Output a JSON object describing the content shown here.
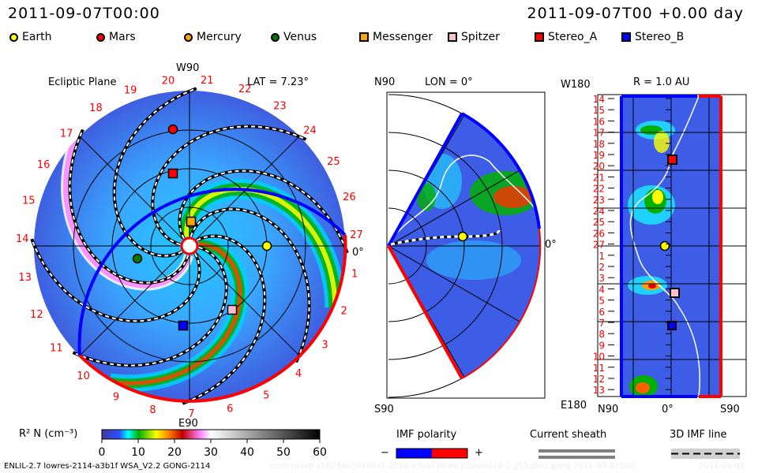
{
  "header": {
    "left_time": "2011-09-07T00:00",
    "right_time": "2011-09-07T00 +0.00 day"
  },
  "legend": [
    {
      "label": "Earth",
      "shape": "circle",
      "color": "#ffff00"
    },
    {
      "label": "Mars",
      "shape": "circle",
      "color": "#ff0000"
    },
    {
      "label": "Mercury",
      "shape": "circle",
      "color": "#ffa500"
    },
    {
      "label": "Venus",
      "shape": "circle",
      "color": "#007a00"
    },
    {
      "label": "Messenger",
      "shape": "square",
      "color": "#ffa500"
    },
    {
      "label": "Spitzer",
      "shape": "square",
      "color": "#ffc0cb"
    },
    {
      "label": "Stereo_A",
      "shape": "square",
      "color": "#ff0000"
    },
    {
      "label": "Stereo_B",
      "shape": "square",
      "color": "#0000ff"
    }
  ],
  "chart_data": [
    {
      "type": "heatmap",
      "title": "Ecliptic Plane",
      "subtitle": "LAT = 7.23°",
      "top_label": "W90",
      "bottom_label": "E90",
      "right_label": "0°",
      "carrington_labels": [
        "1",
        "2",
        "3",
        "4",
        "5",
        "6",
        "7",
        "8",
        "9",
        "10",
        "11",
        "12",
        "13",
        "14",
        "15",
        "16",
        "17",
        "18",
        "19",
        "20",
        "21",
        "22",
        "23",
        "24",
        "25",
        "26",
        "27"
      ]
    },
    {
      "type": "heatmap",
      "title": "LON = 0°",
      "top_label": "N90",
      "bottom_label": "S90",
      "right_label": "0°"
    },
    {
      "type": "heatmap",
      "title": "R = 1.0 AU",
      "top_label": "W180",
      "bottom_label": "E180",
      "x_tick_labels": [
        "N90",
        "0°",
        "S90"
      ],
      "y_tick_labels": [
        "14",
        "15",
        "16",
        "17",
        "18",
        "19",
        "20",
        "21",
        "22",
        "23",
        "24",
        "25",
        "26",
        "27",
        "1",
        "2",
        "3",
        "4",
        "5",
        "6",
        "7",
        "8",
        "9",
        "10",
        "11",
        "12",
        "13"
      ]
    }
  ],
  "colorbar": {
    "label": "R² N (cm⁻³)",
    "ticks": [
      "0",
      "10",
      "20",
      "30",
      "40",
      "50",
      "60"
    ],
    "range": [
      0,
      60
    ]
  },
  "imf_legend": {
    "polarity_label": "IMF polarity",
    "minus": "−",
    "plus": "+",
    "sheath_label": "Current sheath",
    "line_label": "3D IMF line"
  },
  "footer": {
    "model": "ENLIL-2.7 lowres-2114-a3b1f WSA_V2.2 GONG-2114",
    "run_id": "ccmc/wsafr-cld/256x30x90x1.2114-a3b1f.16-mcp1umn1cd-1.g53q5d2.gong-2011-09-07T00",
    "run_date": "2011-09-08"
  },
  "colors": {
    "neg": "#0000ff",
    "pos": "#ff0000",
    "bg_density": "#3a5ee8"
  }
}
